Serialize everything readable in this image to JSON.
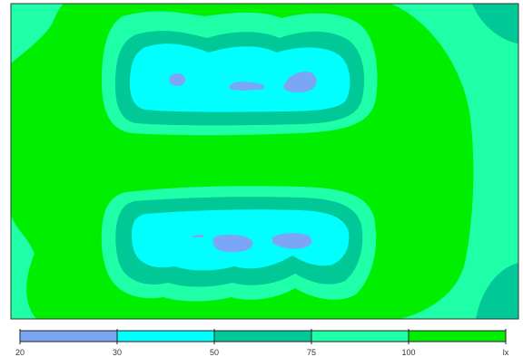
{
  "chart_data": {
    "type": "heatmap",
    "title": "",
    "unit": "lx",
    "legend": {
      "placement": "bottom",
      "bins": [
        {
          "from": 20,
          "to": 30,
          "color": "#7aa6f5"
        },
        {
          "from": 30,
          "to": 50,
          "color": "#00ffff"
        },
        {
          "from": 50,
          "to": 75,
          "color": "#00c896"
        },
        {
          "from": 75,
          "to": 100,
          "color": "#1effa8"
        },
        {
          "from": 100,
          "to": null,
          "color": "#00ee00"
        }
      ],
      "tick_labels": [
        "20",
        "30",
        "50",
        "75",
        "100",
        "lx"
      ]
    },
    "regions": [
      {
        "name": "upper-luminaire-row",
        "min_value": 20,
        "band_sequence": [
          100,
          75,
          50,
          30,
          20
        ]
      },
      {
        "name": "lower-luminaire-row",
        "min_value": 20,
        "band_sequence": [
          100,
          75,
          50,
          30,
          20
        ]
      },
      {
        "name": "middle-band",
        "min_value": 100
      },
      {
        "name": "right-edge",
        "min_value": 75
      },
      {
        "name": "top-right-corner",
        "min_value": 50
      },
      {
        "name": "bottom-right-corner",
        "min_value": 50
      }
    ]
  }
}
